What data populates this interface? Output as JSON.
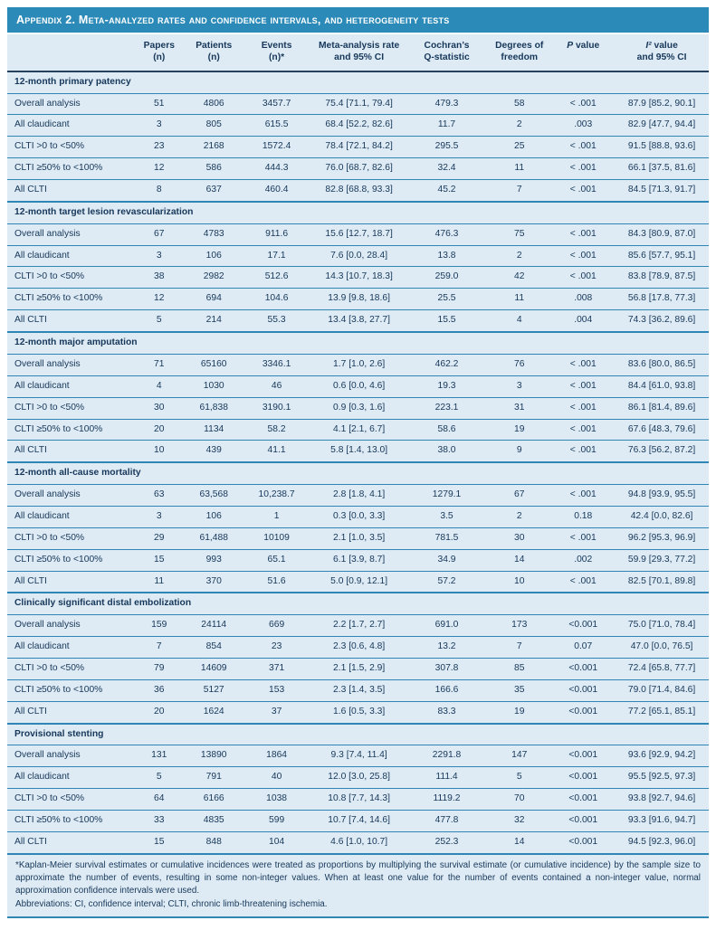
{
  "title": "Appendix 2. Meta-analyzed rates and confidence intervals, and heterogeneity tests",
  "colors": {
    "header_bar_blue": "#2B8AB8",
    "row_background_blue": "#DEEBF4",
    "rule_blue": "#2F87B5",
    "header_rule_navy": "#25415D",
    "text_navy": "#16375A",
    "title_text": "#FFFFFF"
  },
  "table": {
    "columns": [
      {
        "key": "label",
        "text": ""
      },
      {
        "key": "papers",
        "text": "Papers\n(n)"
      },
      {
        "key": "patients",
        "text": "Patients\n(n)"
      },
      {
        "key": "events",
        "text": "Events\n(n)*"
      },
      {
        "key": "rate",
        "text": "Meta-analysis rate\nand 95% CI"
      },
      {
        "key": "q",
        "text": "Cochran’s\nQ-statistic"
      },
      {
        "key": "df",
        "text": "Degrees of\nfreedom"
      },
      {
        "key": "p",
        "text": "P value",
        "italic_first": true
      },
      {
        "key": "i2",
        "text": "I² value\nand 95% CI",
        "italic_first": true
      }
    ],
    "sections": [
      {
        "header": "12-month primary patency",
        "rows": [
          {
            "label": "Overall analysis",
            "papers": "51",
            "patients": "4806",
            "events": "3457.7",
            "rate": "75.4 [71.1, 79.4]",
            "q": "479.3",
            "df": "58",
            "p": "< .001",
            "i2": "87.9 [85.2, 90.1]"
          },
          {
            "label": "All claudicant",
            "papers": "3",
            "patients": "805",
            "events": "615.5",
            "rate": "68.4 [52.2, 82.6]",
            "q": "11.7",
            "df": "2",
            "p": ".003",
            "i2": "82.9 [47.7, 94.4]"
          },
          {
            "label": "CLTI >0 to <50%",
            "papers": "23",
            "patients": "2168",
            "events": "1572.4",
            "rate": "78.4 [72.1, 84.2]",
            "q": "295.5",
            "df": "25",
            "p": "< .001",
            "i2": "91.5 [88.8, 93.6]"
          },
          {
            "label": "CLTI ≥50% to <100%",
            "papers": "12",
            "patients": "586",
            "events": "444.3",
            "rate": "76.0 [68.7, 82.6]",
            "q": "32.4",
            "df": "11",
            "p": "< .001",
            "i2": "66.1 [37.5, 81.6]"
          },
          {
            "label": "All CLTI",
            "papers": "8",
            "patients": "637",
            "events": "460.4",
            "rate": "82.8 [68.8, 93.3]",
            "q": "45.2",
            "df": "7",
            "p": "< .001",
            "i2": "84.5 [71.3, 91.7]"
          }
        ]
      },
      {
        "header": "12-month target lesion revascularization",
        "rows": [
          {
            "label": "Overall analysis",
            "papers": "67",
            "patients": "4783",
            "events": "911.6",
            "rate": "15.6 [12.7, 18.7]",
            "q": "476.3",
            "df": "75",
            "p": "< .001",
            "i2": "84.3 [80.9, 87.0]"
          },
          {
            "label": "All claudicant",
            "papers": "3",
            "patients": "106",
            "events": "17.1",
            "rate": "7.6 [0.0, 28.4]",
            "q": "13.8",
            "df": "2",
            "p": "< .001",
            "i2": "85.6 [57.7, 95.1]"
          },
          {
            "label": "CLTI >0 to <50%",
            "papers": "38",
            "patients": "2982",
            "events": "512.6",
            "rate": "14.3 [10.7, 18.3]",
            "q": "259.0",
            "df": "42",
            "p": "< .001",
            "i2": "83.8 [78.9, 87.5]"
          },
          {
            "label": "CLTI ≥50% to <100%",
            "papers": "12",
            "patients": "694",
            "events": "104.6",
            "rate": "13.9 [9.8, 18.6]",
            "q": "25.5",
            "df": "11",
            "p": ".008",
            "i2": "56.8 [17.8, 77.3]"
          },
          {
            "label": "All CLTI",
            "papers": "5",
            "patients": "214",
            "events": "55.3",
            "rate": "13.4 [3.8, 27.7]",
            "q": "15.5",
            "df": "4",
            "p": ".004",
            "i2": "74.3 [36.2, 89.6]"
          }
        ]
      },
      {
        "header": "12-month major amputation",
        "rows": [
          {
            "label": "Overall analysis",
            "papers": "71",
            "patients": "65160",
            "events": "3346.1",
            "rate": "1.7 [1.0, 2.6]",
            "q": "462.2",
            "df": "76",
            "p": "< .001",
            "i2": "83.6 [80.0, 86.5]"
          },
          {
            "label": "All claudicant",
            "papers": "4",
            "patients": "1030",
            "events": "46",
            "rate": "0.6 [0.0, 4.6]",
            "q": "19.3",
            "df": "3",
            "p": "< .001",
            "i2": "84.4 [61.0, 93.8]"
          },
          {
            "label": "CLTI >0 to <50%",
            "papers": "30",
            "patients": "61,838",
            "events": "3190.1",
            "rate": "0.9 [0.3, 1.6]",
            "q": "223.1",
            "df": "31",
            "p": "< .001",
            "i2": "86.1 [81.4, 89.6]"
          },
          {
            "label": "CLTI ≥50% to <100%",
            "papers": "20",
            "patients": "1134",
            "events": "58.2",
            "rate": "4.1 [2.1, 6.7]",
            "q": "58.6",
            "df": "19",
            "p": "< .001",
            "i2": "67.6 [48.3, 79.6]"
          },
          {
            "label": "All CLTI",
            "papers": "10",
            "patients": "439",
            "events": "41.1",
            "rate": "5.8 [1.4, 13.0]",
            "q": "38.0",
            "df": "9",
            "p": "< .001",
            "i2": "76.3 [56.2, 87.2]"
          }
        ]
      },
      {
        "header": "12-month all-cause mortality",
        "rows": [
          {
            "label": "Overall analysis",
            "papers": "63",
            "patients": "63,568",
            "events": "10,238.7",
            "rate": "2.8 [1.8, 4.1]",
            "q": "1279.1",
            "df": "67",
            "p": "< .001",
            "i2": "94.8 [93.9, 95.5]"
          },
          {
            "label": "All claudicant",
            "papers": "3",
            "patients": "106",
            "events": "1",
            "rate": "0.3 [0.0, 3.3]",
            "q": "3.5",
            "df": "2",
            "p": "0.18",
            "i2": "42.4 [0.0, 82.6]"
          },
          {
            "label": "CLTI >0 to <50%",
            "papers": "29",
            "patients": "61,488",
            "events": "10109",
            "rate": "2.1 [1.0, 3.5]",
            "q": "781.5",
            "df": "30",
            "p": "< .001",
            "i2": "96.2 [95.3, 96.9]"
          },
          {
            "label": "CLTI ≥50% to <100%",
            "papers": "15",
            "patients": "993",
            "events": "65.1",
            "rate": "6.1 [3.9, 8.7]",
            "q": "34.9",
            "df": "14",
            "p": ".002",
            "i2": "59.9 [29.3, 77.2]"
          },
          {
            "label": "All CLTI",
            "papers": "11",
            "patients": "370",
            "events": "51.6",
            "rate": "5.0 [0.9, 12.1]",
            "q": "57.2",
            "df": "10",
            "p": "< .001",
            "i2": "82.5 [70.1, 89.8]"
          }
        ]
      },
      {
        "header": "Clinically significant distal embolization",
        "rows": [
          {
            "label": "Overall analysis",
            "papers": "159",
            "patients": "24114",
            "events": "669",
            "rate": "2.2 [1.7, 2.7]",
            "q": "691.0",
            "df": "173",
            "p": "<0.001",
            "i2": "75.0 [71.0, 78.4]"
          },
          {
            "label": "All claudicant",
            "papers": "7",
            "patients": "854",
            "events": "23",
            "rate": "2.3 [0.6, 4.8]",
            "q": "13.2",
            "df": "7",
            "p": "0.07",
            "i2": "47.0 [0.0, 76.5]"
          },
          {
            "label": "CLTI >0 to <50%",
            "papers": "79",
            "patients": "14609",
            "events": "371",
            "rate": "2.1 [1.5, 2.9]",
            "q": "307.8",
            "df": "85",
            "p": "<0.001",
            "i2": "72.4 [65.8, 77.7]"
          },
          {
            "label": "CLTI ≥50% to <100%",
            "papers": "36",
            "patients": "5127",
            "events": "153",
            "rate": "2.3 [1.4, 3.5]",
            "q": "166.6",
            "df": "35",
            "p": "<0.001",
            "i2": "79.0 [71.4, 84.6]"
          },
          {
            "label": "All CLTI",
            "papers": "20",
            "patients": "1624",
            "events": "37",
            "rate": "1.6 [0.5, 3.3]",
            "q": "83.3",
            "df": "19",
            "p": "<0.001",
            "i2": "77.2 [65.1, 85.1]"
          }
        ]
      },
      {
        "header": "Provisional stenting",
        "rows": [
          {
            "label": "Overall analysis",
            "papers": "131",
            "patients": "13890",
            "events": "1864",
            "rate": "9.3 [7.4, 11.4]",
            "q": "2291.8",
            "df": "147",
            "p": "<0.001",
            "i2": "93.6 [92.9, 94.2]"
          },
          {
            "label": "All claudicant",
            "papers": "5",
            "patients": "791",
            "events": "40",
            "rate": "12.0 [3.0, 25.8]",
            "q": "111.4",
            "df": "5",
            "p": "<0.001",
            "i2": "95.5 [92.5, 97.3]"
          },
          {
            "label": "CLTI >0 to <50%",
            "papers": "64",
            "patients": "6166",
            "events": "1038",
            "rate": "10.8 [7.7, 14.3]",
            "q": "1119.2",
            "df": "70",
            "p": "<0.001",
            "i2": "93.8 [92.7, 94.6]"
          },
          {
            "label": "CLTI ≥50% to <100%",
            "papers": "33",
            "patients": "4835",
            "events": "599",
            "rate": "10.7 [7.4, 14.6]",
            "q": "477.8",
            "df": "32",
            "p": "<0.001",
            "i2": "93.3 [91.6, 94.7]"
          },
          {
            "label": "All CLTI",
            "papers": "15",
            "patients": "848",
            "events": "104",
            "rate": "4.6 [1.0, 10.7]",
            "q": "252.3",
            "df": "14",
            "p": "<0.001",
            "i2": "94.5 [92.3, 96.0]"
          }
        ]
      }
    ]
  },
  "footnotes": {
    "note": "*Kaplan-Meier survival estimates or cumulative incidences were treated as proportions by multiplying the survival estimate (or cumulative incidence) by the sample size to approximate the number of events, resulting in some non-integer values. When at least one value for the number of events contained a non-integer value, normal approximation confidence intervals were used.",
    "abbreviations": "Abbreviations: CI, confidence interval; CLTI, chronic limb-threatening ischemia."
  }
}
